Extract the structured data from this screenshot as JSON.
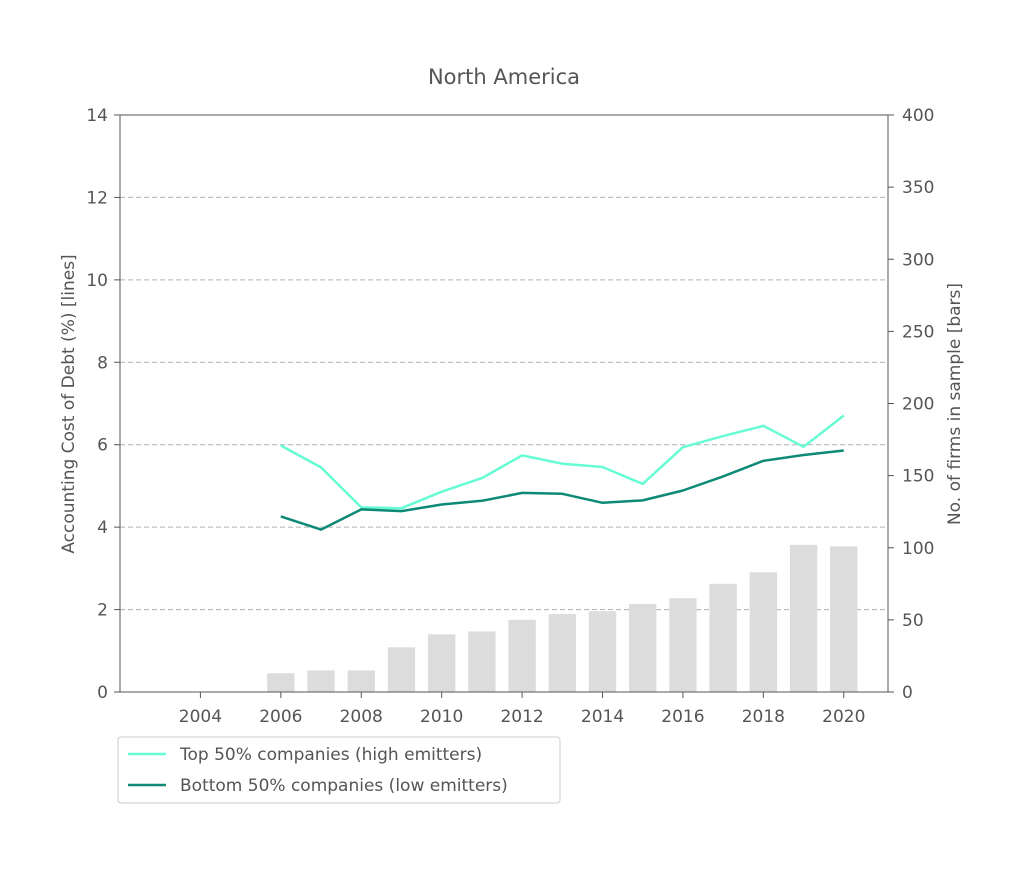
{
  "chart_data": {
    "type": "bar+line",
    "title": "North America",
    "ylabel_left": "Accounting Cost of Debt (%)  [lines]",
    "ylabel_right": "No. of firms in sample [bars]",
    "xlabel": "",
    "xlim": [
      2002.0,
      2021.1
    ],
    "ylim_left": [
      0,
      14
    ],
    "ylim_right": [
      0,
      400
    ],
    "x_ticks": [
      2004,
      2006,
      2008,
      2010,
      2012,
      2014,
      2016,
      2018,
      2020
    ],
    "y_ticks_left": [
      0,
      2,
      4,
      6,
      8,
      10,
      12,
      14
    ],
    "y_ticks_right": [
      0,
      50,
      100,
      150,
      200,
      250,
      300,
      350,
      400
    ],
    "grid": "horizontal dashed",
    "legend_position": "below",
    "years": [
      2006,
      2007,
      2008,
      2009,
      2010,
      2011,
      2012,
      2013,
      2014,
      2015,
      2016,
      2017,
      2018,
      2019,
      2020
    ],
    "bars": {
      "name": "No. of firms in sample",
      "color": "#dcdcdc",
      "values": [
        13,
        15,
        15,
        31,
        40,
        42,
        50,
        54,
        56,
        61,
        65,
        75,
        83,
        102,
        101
      ]
    },
    "series": [
      {
        "name": "Top 50% companies (high emitters)",
        "color": "#66fcd4",
        "values": [
          5.98,
          5.45,
          4.48,
          4.46,
          4.86,
          5.19,
          5.74,
          5.54,
          5.46,
          5.05,
          5.94,
          6.21,
          6.46,
          5.95,
          6.71
        ]
      },
      {
        "name": "Bottom 50% companies (low emitters)",
        "color": "#0c8a76",
        "values": [
          4.26,
          3.94,
          4.43,
          4.39,
          4.55,
          4.64,
          4.83,
          4.81,
          4.59,
          4.65,
          4.89,
          5.23,
          5.61,
          5.75,
          5.86
        ]
      }
    ]
  }
}
